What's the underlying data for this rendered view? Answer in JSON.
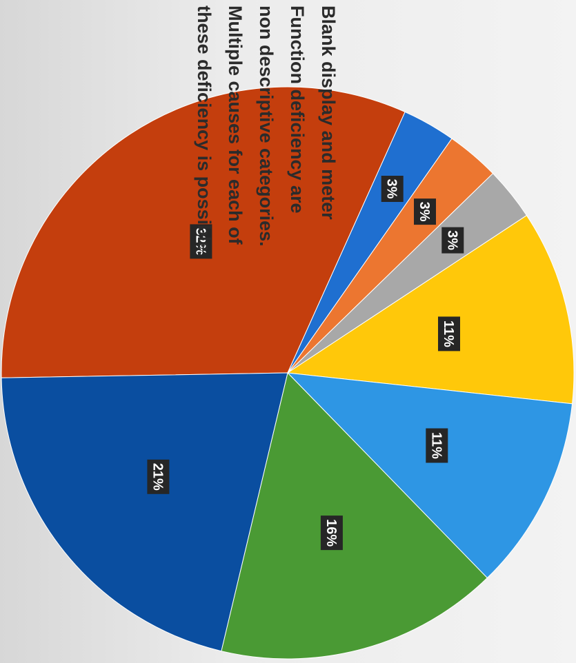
{
  "note": {
    "lines": [
      "Blank display and meter",
      "Function deficiency are",
      "non descriptive categories.",
      "Multiple causes for each of",
      "these deficiency is possible."
    ]
  },
  "chart_data": {
    "type": "pie",
    "title": "",
    "slices": [
      {
        "label": "32%",
        "value": 32,
        "color": "#c43e0d"
      },
      {
        "label": "3%",
        "value": 3,
        "color": "#1f6fd0"
      },
      {
        "label": "3%",
        "value": 3,
        "color": "#ec7630"
      },
      {
        "label": "3%",
        "value": 3,
        "color": "#a8a8a8"
      },
      {
        "label": "11%",
        "value": 11,
        "color": "#ffc80a"
      },
      {
        "label": "11%",
        "value": 11,
        "color": "#2e96e4"
      },
      {
        "label": "16%",
        "value": 16,
        "color": "#4a9a34"
      },
      {
        "label": "21%",
        "value": 21,
        "color": "#0a4ea0"
      }
    ]
  }
}
